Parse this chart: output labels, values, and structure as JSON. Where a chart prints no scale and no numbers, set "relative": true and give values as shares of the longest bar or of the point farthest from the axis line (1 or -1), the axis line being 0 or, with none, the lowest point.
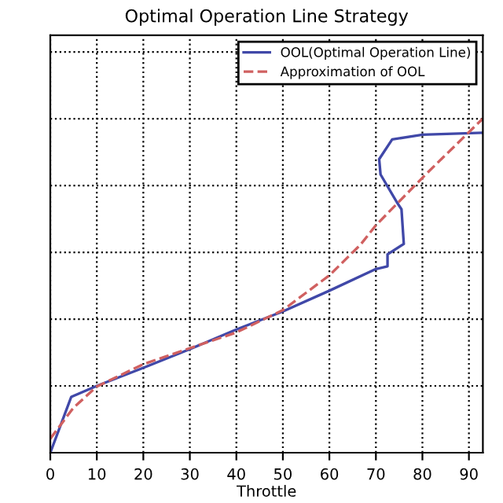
{
  "chart_data": {
    "type": "line",
    "title": "Optimal Operation Line Strategy",
    "xlabel": "Throttle",
    "relative": true,
    "xlim": [
      0,
      93
    ],
    "xticks": [
      0,
      10,
      20,
      30,
      40,
      50,
      60,
      70,
      80,
      90
    ],
    "grid": true,
    "legend": "top right",
    "marker": "none",
    "series": [
      {
        "name": "OOL(Optimal Operation Line)",
        "color": "#4048a8",
        "line_style": "solid",
        "x": [
          0,
          4.5,
          10,
          20,
          30,
          40,
          50,
          60,
          70,
          72.5,
          72.5,
          76,
          75.5,
          74.5,
          71,
          70.7,
          73.5,
          80,
          93
        ],
        "values": [
          0,
          0.167,
          0.2,
          0.254,
          0.31,
          0.369,
          0.423,
          0.485,
          0.55,
          0.558,
          0.594,
          0.625,
          0.729,
          0.75,
          0.833,
          0.879,
          0.938,
          0.952,
          0.958
        ]
      },
      {
        "name": "Approximation of OOL",
        "color": "#d06060",
        "line_style": "dashed",
        "x": [
          0,
          5,
          10,
          20,
          30,
          40,
          50,
          60,
          66.7,
          70,
          80.7,
          91.7,
          93
        ],
        "values": [
          0.042,
          0.135,
          0.198,
          0.265,
          0.313,
          0.36,
          0.427,
          0.531,
          0.623,
          0.681,
          0.833,
          0.983,
          1.0
        ]
      }
    ]
  }
}
